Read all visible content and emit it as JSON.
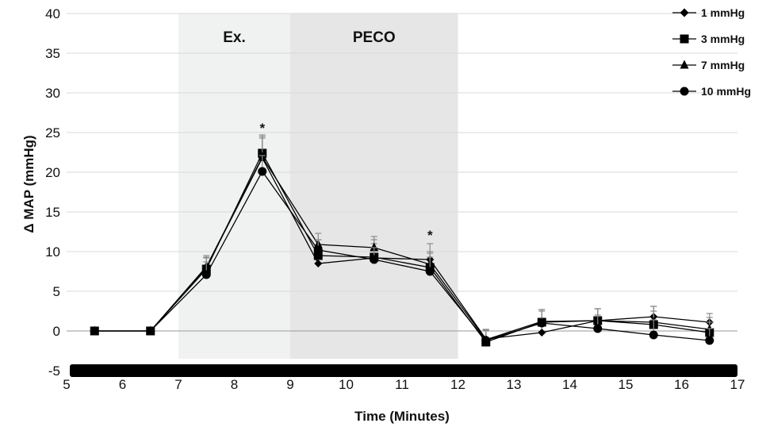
{
  "chart_data": {
    "type": "line",
    "xlabel": "Time (Minutes)",
    "ylabel": "Δ MAP (mmHg)",
    "xlim": [
      5,
      17
    ],
    "ylim": [
      -5,
      40
    ],
    "xticks": [
      "5",
      "6",
      "7",
      "8",
      "9",
      "10",
      "11",
      "12",
      "13",
      "14",
      "15",
      "16",
      "17"
    ],
    "yticks": [
      "-5",
      "0",
      "5",
      "10",
      "15",
      "20",
      "25",
      "30",
      "35",
      "40"
    ],
    "grid": true,
    "legend_position": "top-right",
    "shaded_regions": [
      {
        "label": "Ex.",
        "from": 7,
        "to": 9,
        "color": "#f0f2f1"
      },
      {
        "label": "PECO",
        "from": 9,
        "to": 12,
        "color": "#e6e6e6"
      }
    ],
    "annotations": [
      {
        "text": "*",
        "x": 8.5,
        "y": 25.5
      },
      {
        "text": "*",
        "x": 11.5,
        "y": 12.0
      }
    ],
    "x": [
      5.5,
      6.5,
      7.5,
      8.5,
      9.5,
      10.5,
      11.5,
      12.5,
      13.5,
      14.5,
      15.5,
      16.5
    ],
    "series": [
      {
        "name": "1 mmHg",
        "marker": "diamond",
        "values": [
          0,
          0,
          8.0,
          21.8,
          8.5,
          9.2,
          9.0,
          -1.0,
          -0.2,
          1.3,
          1.8,
          1.1
        ],
        "errors": [
          0,
          0,
          1.2,
          2.5,
          1.5,
          1.8,
          2.0,
          1.2,
          1.4,
          1.5,
          1.3,
          1.1
        ]
      },
      {
        "name": "3 mmHg",
        "marker": "square",
        "values": [
          0,
          0,
          7.8,
          22.4,
          9.5,
          9.3,
          8.0,
          -1.4,
          1.1,
          1.3,
          0.8,
          -0.2
        ],
        "errors": [
          0,
          0,
          1.5,
          2.3,
          2.0,
          2.2,
          1.8,
          1.5,
          1.6,
          1.5,
          1.7,
          1.3
        ]
      },
      {
        "name": "7 mmHg",
        "marker": "triangle",
        "values": [
          0,
          0,
          8.1,
          21.9,
          10.9,
          10.5,
          8.4,
          -1.1,
          1.2,
          1.3,
          1.1,
          0.2
        ],
        "errors": [
          0,
          0,
          1.4,
          2.6,
          1.4,
          1.4,
          1.6,
          1.3,
          1.5,
          1.5,
          2.0,
          1.5
        ]
      },
      {
        "name": "10 mmHg",
        "marker": "circle",
        "values": [
          0,
          0,
          7.1,
          20.1,
          10.2,
          9.0,
          7.5,
          -1.2,
          1.0,
          0.3,
          -0.5,
          -1.2
        ],
        "errors": [
          0,
          0,
          1.6,
          2.0,
          1.3,
          1.5,
          1.8,
          1.2,
          1.5,
          1.7,
          1.9,
          1.5
        ]
      }
    ]
  }
}
